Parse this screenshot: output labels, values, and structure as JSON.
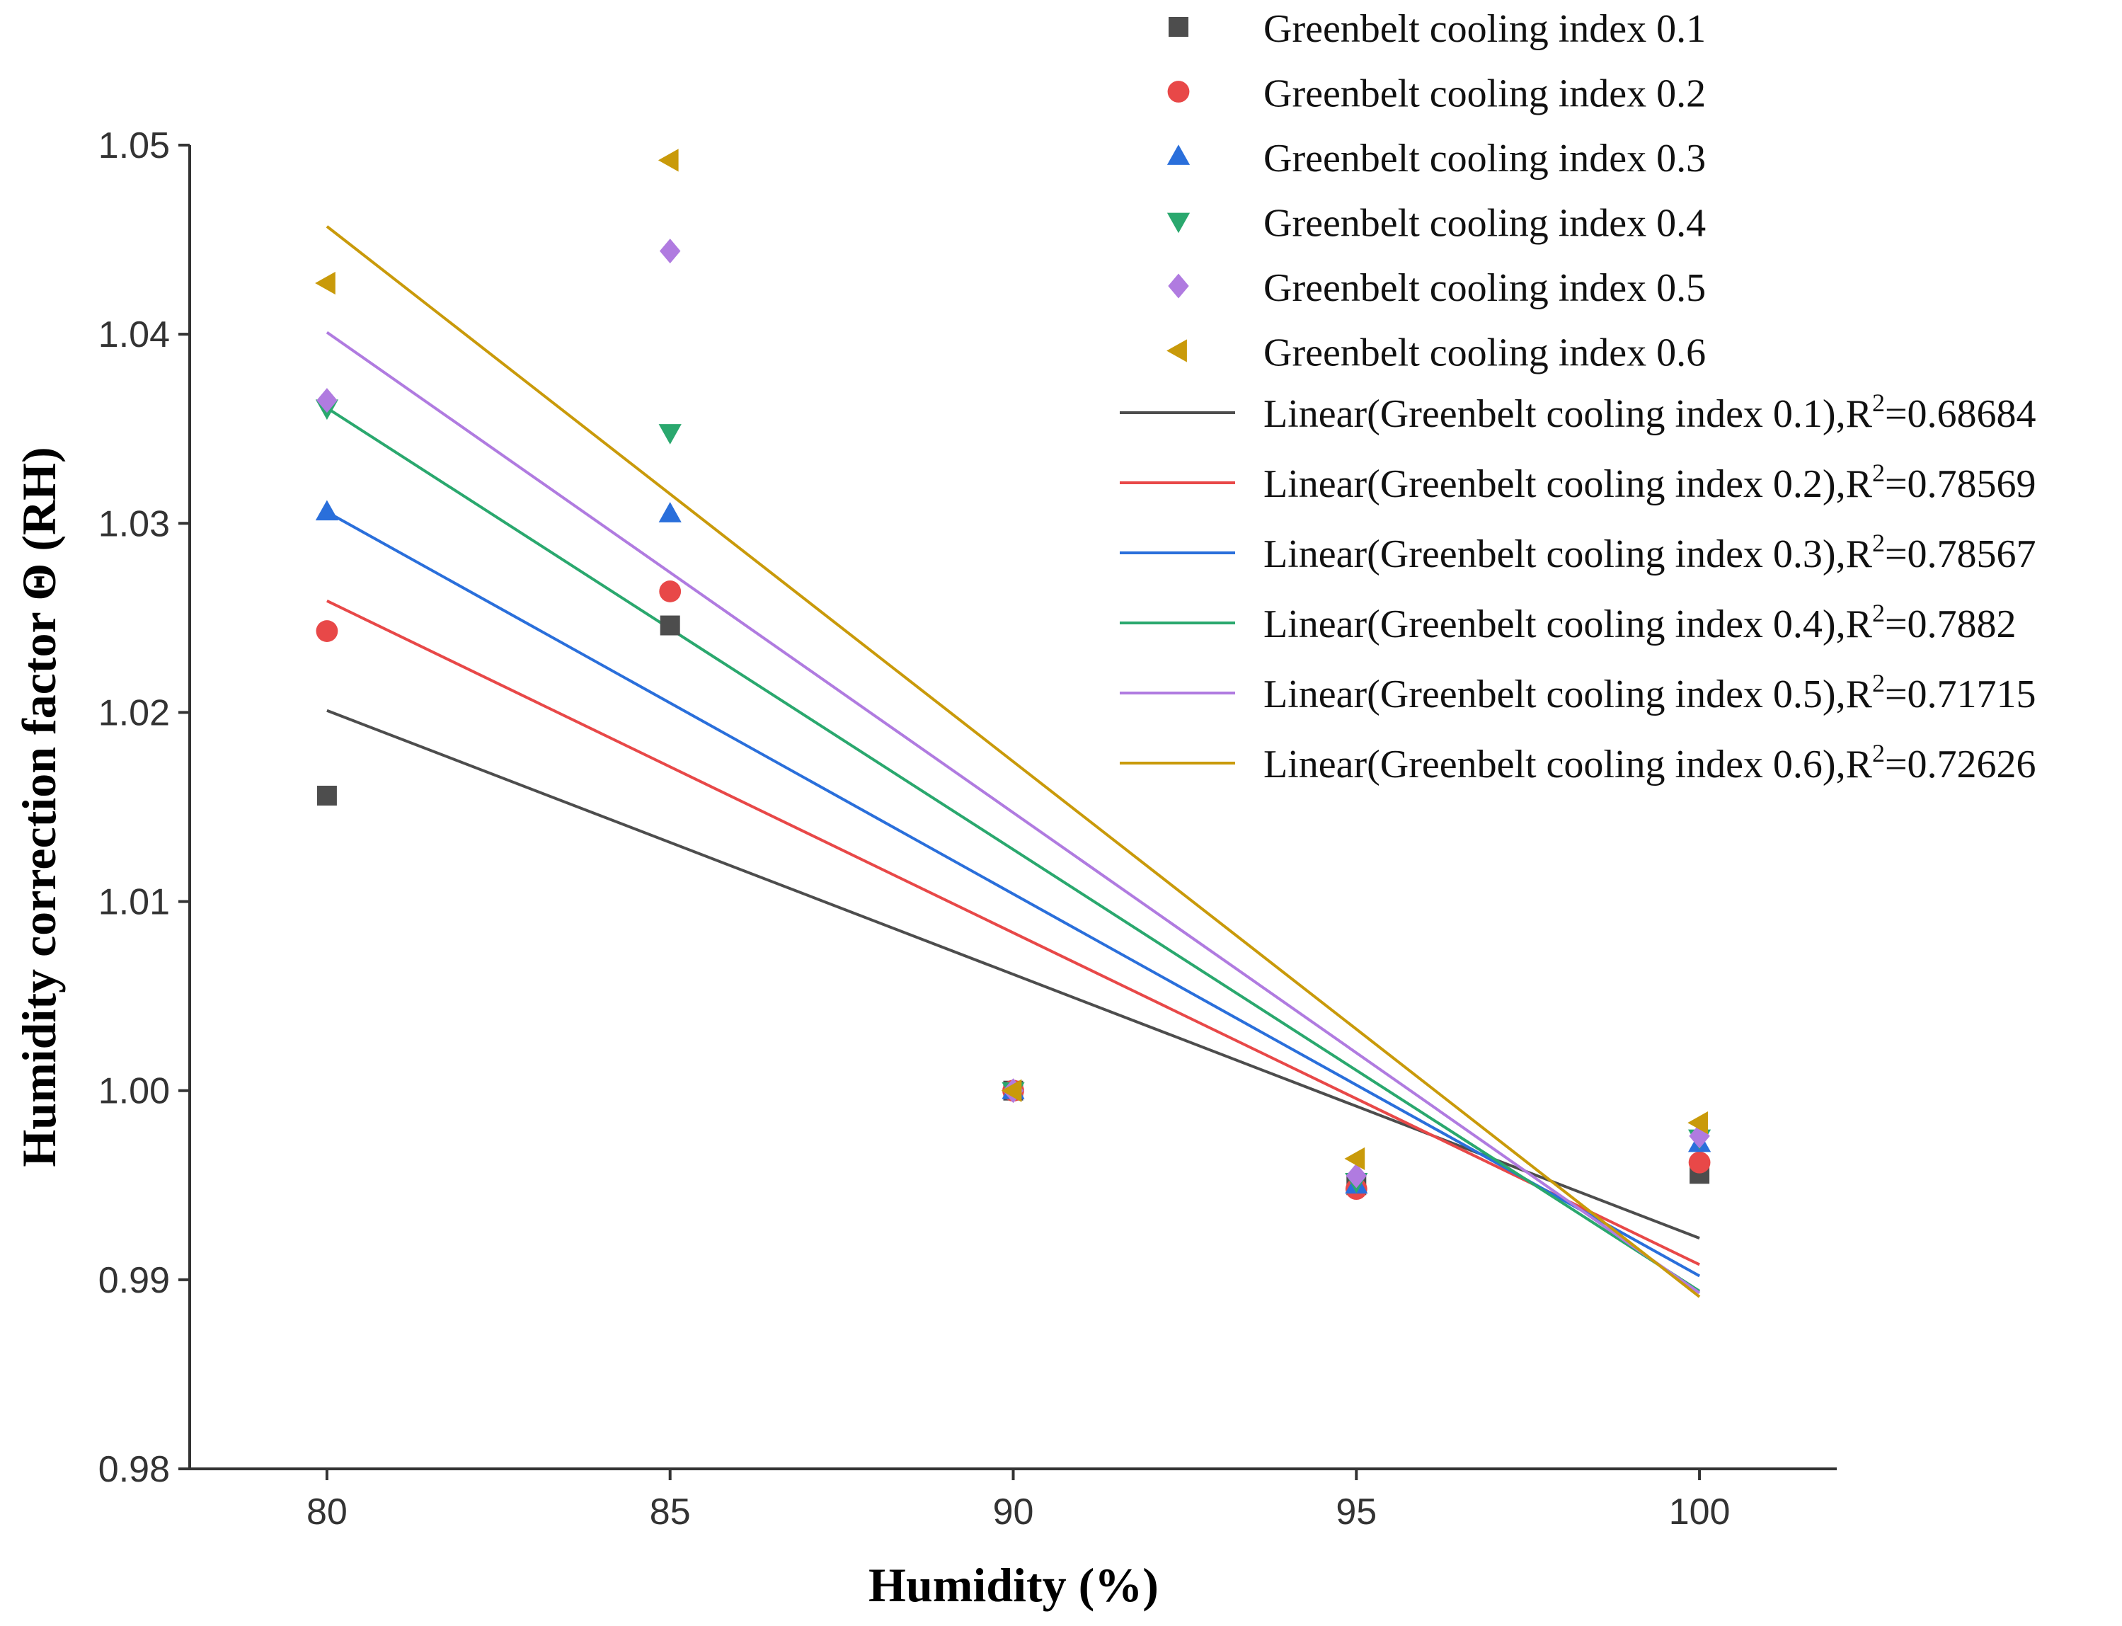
{
  "chart_data": {
    "type": "scatter",
    "title": "",
    "xlabel": "Humidity (%)",
    "ylabel": "Humidity correction factor Θ (RH)",
    "xlim": [
      78,
      102
    ],
    "ylim": [
      0.98,
      1.05
    ],
    "x_ticks": [
      80,
      85,
      90,
      95,
      100
    ],
    "x_tick_labels": [
      "80",
      "85",
      "90",
      "95",
      "100"
    ],
    "y_ticks": [
      0.98,
      0.99,
      1.0,
      1.01,
      1.02,
      1.03,
      1.04,
      1.05
    ],
    "y_tick_labels": [
      "0.98",
      "0.99",
      "1.00",
      "1.01",
      "1.02",
      "1.03",
      "1.04",
      "1.05"
    ],
    "legend_position": "top-right",
    "x": [
      80,
      85,
      90,
      95,
      100
    ],
    "series": [
      {
        "name": "Greenbelt cooling index 0.1",
        "marker": "square",
        "color": "#4d4d4d",
        "values": [
          1.0156,
          1.0246,
          1.0,
          0.995,
          0.9956
        ],
        "fit": {
          "label_prefix": "Linear(Greenbelt cooling index 0.1),R",
          "label_suffix": "=0.68684",
          "start": 1.0201,
          "end": 0.9922
        }
      },
      {
        "name": "Greenbelt cooling index 0.2",
        "marker": "circle",
        "color": "#e84848",
        "values": [
          1.0243,
          1.0264,
          1.0,
          0.9948,
          0.9962
        ],
        "fit": {
          "label_prefix": "Linear(Greenbelt cooling index 0.2),R",
          "label_suffix": "=0.78569",
          "start": 1.0259,
          "end": 0.9908
        }
      },
      {
        "name": "Greenbelt cooling index 0.3",
        "marker": "triangle-up",
        "color": "#2a6fdb",
        "values": [
          1.0306,
          1.0305,
          1.0,
          0.995,
          0.9972
        ],
        "fit": {
          "label_prefix": "Linear(Greenbelt cooling index 0.3),R",
          "label_suffix": "=0.78567",
          "start": 1.0306,
          "end": 0.9902
        }
      },
      {
        "name": "Greenbelt cooling index 0.4",
        "marker": "triangle-down",
        "color": "#2aa86e",
        "values": [
          1.0361,
          1.0348,
          1.0,
          0.9952,
          0.9975
        ],
        "fit": {
          "label_prefix": "Linear(Greenbelt cooling index 0.4),R",
          "label_suffix": "=0.7882",
          "start": 1.0361,
          "end": 0.9894
        }
      },
      {
        "name": "Greenbelt cooling index 0.5",
        "marker": "diamond",
        "color": "#b07be0",
        "values": [
          1.0365,
          1.0444,
          1.0,
          0.9955,
          0.9976
        ],
        "fit": {
          "label_prefix": "Linear(Greenbelt cooling index 0.5),R",
          "label_suffix": "=0.71715",
          "start": 1.0401,
          "end": 0.9893
        }
      },
      {
        "name": "Greenbelt cooling index 0.6",
        "marker": "triangle-left",
        "color": "#c99a0a",
        "values": [
          1.0427,
          1.0492,
          1.0,
          0.9964,
          0.9983
        ],
        "fit": {
          "label_prefix": "Linear(Greenbelt cooling index 0.6),R",
          "label_suffix": "=0.72626",
          "start": 1.0457,
          "end": 0.9891
        }
      }
    ]
  }
}
